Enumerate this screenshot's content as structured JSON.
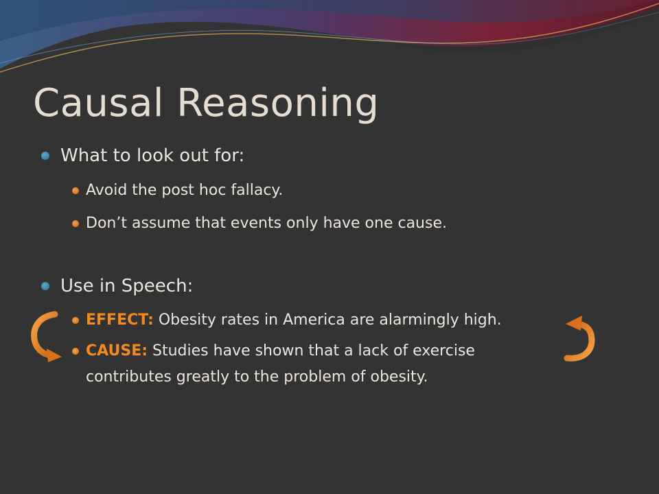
{
  "slide": {
    "title": "Causal Reasoning",
    "section1": {
      "heading": "What to look out for:",
      "items": [
        "Avoid the post hoc fallacy.",
        "Don’t assume that events only have one cause."
      ]
    },
    "section2": {
      "heading": "Use in Speech:",
      "items": [
        {
          "label": "EFFECT:",
          "text": " Obesity rates in America are alarmingly high."
        },
        {
          "label": "CAUSE:",
          "text": " Studies have shown that a lack of exercise contributes greatly to the problem of obesity."
        }
      ]
    }
  },
  "colors": {
    "background": "#333333",
    "title": "#e6ddd2",
    "accent": "#f28a1e",
    "arrow": "#e8781a"
  }
}
